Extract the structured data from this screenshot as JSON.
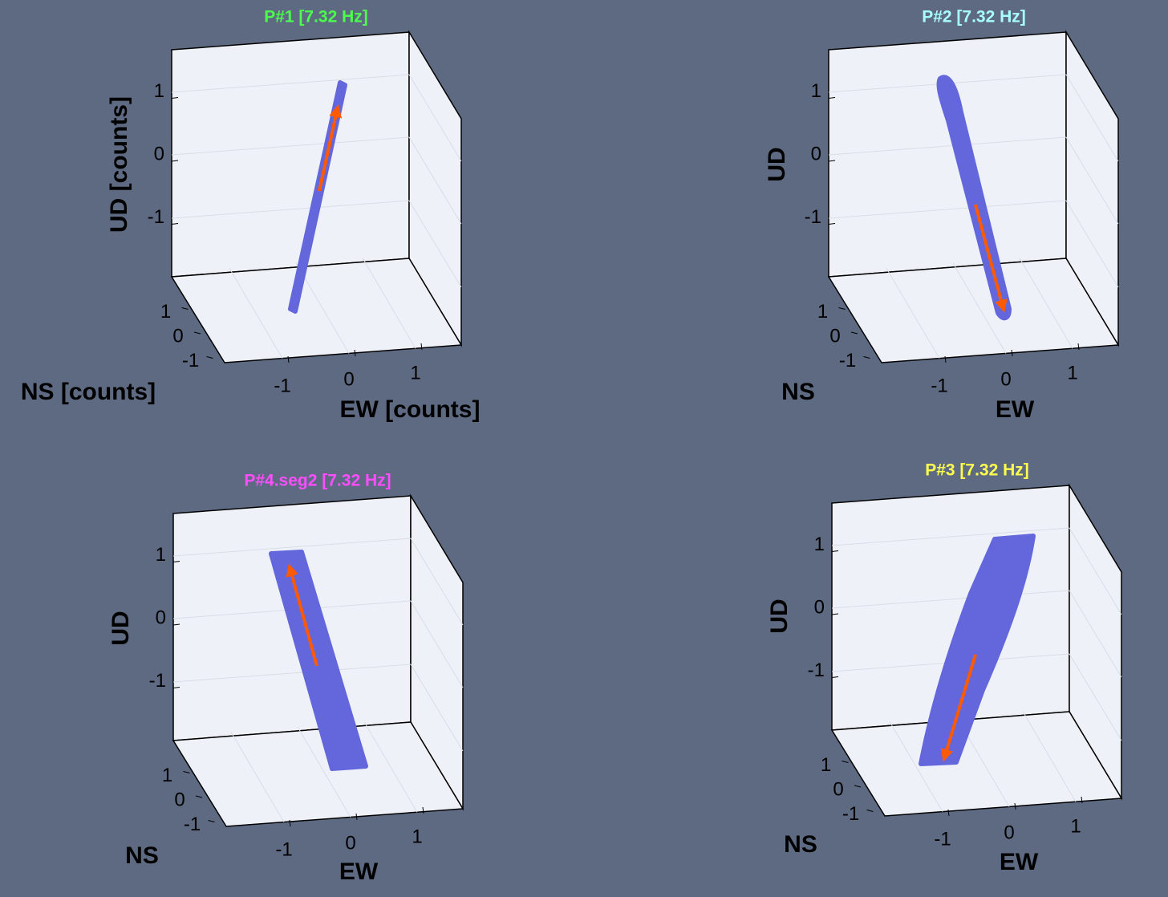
{
  "panels": [
    {
      "title": "P#1 [7.32 Hz]",
      "title_color": "#4dff4d",
      "x_label": "EW [counts]",
      "y_label": "NS [counts]",
      "z_label": "UD [counts]",
      "xticks": [
        -1,
        0,
        1
      ],
      "yticks": [
        -1,
        0,
        1
      ],
      "zticks": [
        -1,
        0,
        1
      ]
    },
    {
      "title": "P#2 [7.32 Hz]",
      "title_color": "#a8ffff",
      "x_label": "EW",
      "y_label": "NS",
      "z_label": "UD",
      "xticks": [
        -1,
        0,
        1
      ],
      "yticks": [
        -1,
        0,
        1
      ],
      "zticks": [
        -1,
        0,
        1
      ]
    },
    {
      "title": "P#4.seg2 [7.32 Hz]",
      "title_color": "#ff4dff",
      "x_label": "EW",
      "y_label": "NS",
      "z_label": "UD",
      "xticks": [
        -1,
        0,
        1
      ],
      "yticks": [
        -1,
        0,
        1
      ],
      "zticks": [
        -1,
        0,
        1
      ]
    },
    {
      "title": "P#3 [7.32 Hz]",
      "title_color": "#ffff4d",
      "x_label": "EW",
      "y_label": "NS",
      "z_label": "UD",
      "xticks": [
        -1,
        0,
        1
      ],
      "yticks": [
        -1,
        0,
        1
      ],
      "zticks": [
        -1,
        0,
        1
      ]
    }
  ]
}
